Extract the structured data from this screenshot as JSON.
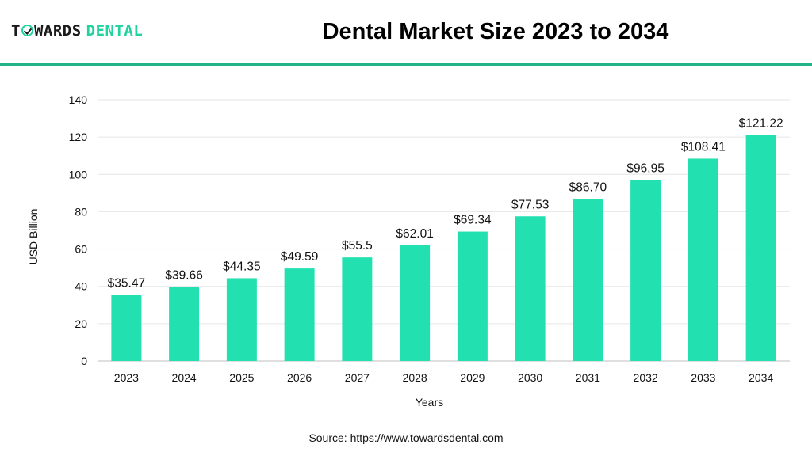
{
  "header": {
    "logo_part1": "T",
    "logo_part2": "WARDS",
    "logo_part3": "DENTAL",
    "title": "Dental Market Size 2023 to 2034"
  },
  "footer": {
    "source": "Source: https://www.towardsdental.com"
  },
  "colors": {
    "bar": "#22e0b0",
    "accent": "#22b38a",
    "logo_green": "#22d3a0",
    "grid": "#e6e6e6"
  },
  "chart_data": {
    "type": "bar",
    "title": "Dental Market Size 2023 to 2034",
    "xlabel": "Years",
    "ylabel": "USD Billion",
    "ylim": [
      0,
      140
    ],
    "yticks": [
      0,
      20,
      40,
      60,
      80,
      100,
      120,
      140
    ],
    "grid": true,
    "categories": [
      "2023",
      "2024",
      "2025",
      "2026",
      "2027",
      "2028",
      "2029",
      "2030",
      "2031",
      "2032",
      "2033",
      "2034"
    ],
    "values": [
      35.47,
      39.66,
      44.35,
      49.59,
      55.5,
      62.01,
      69.34,
      77.53,
      86.7,
      96.95,
      108.41,
      121.22
    ],
    "data_labels": [
      "$35.47",
      "$39.66",
      "$44.35",
      "$49.59",
      "$55.5",
      "$62.01",
      "$69.34",
      "$77.53",
      "$86.70",
      "$96.95",
      "$108.41",
      "$121.22"
    ]
  }
}
